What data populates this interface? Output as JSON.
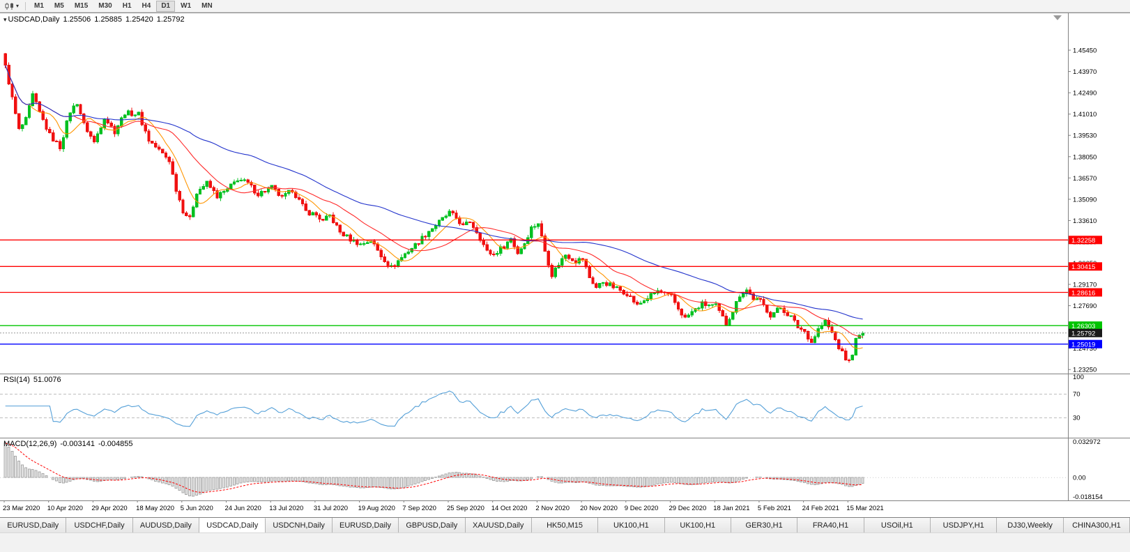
{
  "toolbar": {
    "timeframes": [
      "M1",
      "M5",
      "M15",
      "M30",
      "H1",
      "H4",
      "D1",
      "W1",
      "MN"
    ],
    "active_timeframe": "D1"
  },
  "chart": {
    "symbol_title": "USDCAD,Daily",
    "open": "1.25506",
    "high": "1.25885",
    "low": "1.25420",
    "close": "1.25792"
  },
  "rsi": {
    "label": "RSI(14)",
    "value": "51.0076",
    "axis": [
      "100",
      "70",
      "30"
    ]
  },
  "macd": {
    "label": "MACD(12,26,9)",
    "value_macd": "-0.003141",
    "value_signal": "-0.004855",
    "axis_top": "0.032972",
    "axis_zero": "0.00",
    "axis_bottom": "-0.018154"
  },
  "tabs": {
    "active_index": 3,
    "items": [
      "EURUSD,Daily",
      "USDCHF,Daily",
      "AUDUSD,Daily",
      "USDCAD,Daily",
      "USDCNH,Daily",
      "EURUSD,Daily",
      "GBPUSD,Daily",
      "XAUUSD,Daily",
      "HK50,M15",
      "UK100,H1",
      "UK100,H1",
      "GER30,H1",
      "FRA40,H1",
      "USOil,H1",
      "USDJPY,H1",
      "DJ30,Weekly",
      "CHINA300,H1"
    ],
    "active_label": "USDCAD,Daily"
  },
  "chart_data": {
    "type": "candlestick",
    "symbol": "USDCAD",
    "timeframe": "Daily",
    "ohlc_display": {
      "open": 1.25506,
      "high": 1.25885,
      "low": 1.2542,
      "close": 1.25792
    },
    "bars": 252,
    "first_open": 1.452,
    "price_range": {
      "top": 1.4802,
      "bottom": 1.2297
    },
    "y_ticks": [
      "1.45450",
      "1.43970",
      "1.42490",
      "1.41010",
      "1.39530",
      "1.38050",
      "1.36570",
      "1.35090",
      "1.33610",
      "1.32130",
      "1.30650",
      "1.29170",
      "1.27690",
      "1.26210",
      "1.24730",
      "1.23250"
    ],
    "x_labels": [
      "23 Mar 2020",
      "10 Apr 2020",
      "29 Apr 2020",
      "18 May 2020",
      "5 Jun 2020",
      "24 Jun 2020",
      "13 Jul 2020",
      "31 Jul 2020",
      "19 Aug 2020",
      "7 Sep 2020",
      "25 Sep 2020",
      "14 Oct 2020",
      "2 Nov 2020",
      "20 Nov 2020",
      "9 Dec 2020",
      "29 Dec 2020",
      "18 Jan 2021",
      "5 Feb 2021",
      "24 Feb 2021",
      "15 Mar 2021"
    ],
    "bars_per_label": 13,
    "close_anchors": [
      [
        0,
        1.444
      ],
      [
        2,
        1.421
      ],
      [
        4,
        1.399
      ],
      [
        6,
        1.406
      ],
      [
        8,
        1.423
      ],
      [
        10,
        1.411
      ],
      [
        13,
        1.3955
      ],
      [
        16,
        1.387
      ],
      [
        19,
        1.412
      ],
      [
        21,
        1.418
      ],
      [
        23,
        1.403
      ],
      [
        26,
        1.3905
      ],
      [
        29,
        1.408
      ],
      [
        32,
        1.398
      ],
      [
        35,
        1.411
      ],
      [
        39,
        1.41
      ],
      [
        42,
        1.392
      ],
      [
        45,
        1.385
      ],
      [
        48,
        1.378
      ],
      [
        50,
        1.358
      ],
      [
        52,
        1.343
      ],
      [
        54,
        1.337
      ],
      [
        56,
        1.356
      ],
      [
        59,
        1.362
      ],
      [
        62,
        1.353
      ],
      [
        65,
        1.3575
      ],
      [
        68,
        1.365
      ],
      [
        71,
        1.362
      ],
      [
        74,
        1.3545
      ],
      [
        78,
        1.359
      ],
      [
        81,
        1.3515
      ],
      [
        84,
        1.3575
      ],
      [
        88,
        1.3425
      ],
      [
        91,
        1.34
      ],
      [
        93,
        1.3355
      ],
      [
        95,
        1.3395
      ],
      [
        98,
        1.328
      ],
      [
        101,
        1.323
      ],
      [
        104,
        1.3195
      ],
      [
        107,
        1.3225
      ],
      [
        110,
        1.3115
      ],
      [
        113,
        1.3035
      ],
      [
        115,
        1.308
      ],
      [
        117,
        1.313
      ],
      [
        120,
        1.319
      ],
      [
        124,
        1.329
      ],
      [
        127,
        1.335
      ],
      [
        130,
        1.3415
      ],
      [
        132,
        1.338
      ],
      [
        134,
        1.332
      ],
      [
        136,
        1.3355
      ],
      [
        138,
        1.3285
      ],
      [
        141,
        1.3145
      ],
      [
        143,
        1.3125
      ],
      [
        146,
        1.3185
      ],
      [
        148,
        1.3235
      ],
      [
        150,
        1.3135
      ],
      [
        152,
        1.3205
      ],
      [
        154,
        1.331
      ],
      [
        156,
        1.3345
      ],
      [
        158,
        1.315
      ],
      [
        160,
        1.2985
      ],
      [
        162,
        1.306
      ],
      [
        164,
        1.3125
      ],
      [
        167,
        1.308
      ],
      [
        169,
        1.3095
      ],
      [
        171,
        1.2965
      ],
      [
        173,
        1.2895
      ],
      [
        175,
        1.2935
      ],
      [
        178,
        1.29
      ],
      [
        182,
        1.2855
      ],
      [
        185,
        1.277
      ],
      [
        188,
        1.2825
      ],
      [
        191,
        1.287
      ],
      [
        195,
        1.283
      ],
      [
        197,
        1.275
      ],
      [
        199,
        1.268
      ],
      [
        201,
        1.2725
      ],
      [
        204,
        1.278
      ],
      [
        208,
        1.2765
      ],
      [
        211,
        1.2645
      ],
      [
        213,
        1.2735
      ],
      [
        215,
        1.2845
      ],
      [
        217,
        1.288
      ],
      [
        219,
        1.282
      ],
      [
        221,
        1.28
      ],
      [
        224,
        1.2705
      ],
      [
        227,
        1.2755
      ],
      [
        230,
        1.269
      ],
      [
        232,
        1.262
      ],
      [
        234,
        1.259
      ],
      [
        236,
        1.2515
      ],
      [
        238,
        1.2605
      ],
      [
        240,
        1.266
      ],
      [
        242,
        1.258
      ],
      [
        244,
        1.248
      ],
      [
        246,
        1.24
      ],
      [
        247,
        1.238
      ],
      [
        248,
        1.244
      ],
      [
        249,
        1.253
      ],
      [
        250,
        1.2555
      ],
      [
        251,
        1.25792
      ]
    ],
    "candle_colors": {
      "up": "#00c020",
      "down": "#f01010"
    },
    "moving_averages": [
      {
        "period": 8,
        "color": "#ff9500",
        "name": "ma-fast-orange"
      },
      {
        "period": 21,
        "color": "#ff2a2a",
        "name": "ma-mid-red"
      },
      {
        "period": 55,
        "color": "#2233cc",
        "name": "ma-slow-blue"
      }
    ],
    "horizontal_lines": [
      {
        "value": 1.32258,
        "label": "1.32258",
        "color": "#ff0000",
        "name": "resistance-line-1"
      },
      {
        "value": 1.30415,
        "label": "1.30415",
        "color": "#ff0000",
        "name": "resistance-line-2"
      },
      {
        "value": 1.28616,
        "label": "1.28616",
        "color": "#ff0000",
        "name": "resistance-line-3"
      },
      {
        "value": 1.26303,
        "label": "1.26303",
        "color": "#00c400",
        "name": "support-line-green"
      },
      {
        "value": 1.25019,
        "label": "1.25019",
        "color": "#0000ff",
        "name": "support-line-blue"
      }
    ],
    "current_price": {
      "value": 1.25792,
      "label": "1.25792",
      "tag_color": "#1a1a1a"
    },
    "rsi": {
      "period": 14,
      "current": 51.0076,
      "levels": [
        70,
        30
      ],
      "range": [
        0,
        100
      ],
      "color": "#55a0d8"
    },
    "macd": {
      "fast": 12,
      "slow": 26,
      "signal": 9,
      "range": [
        -0.018154,
        0.032972
      ],
      "histogram_fill": "#e6e6e6",
      "histogram_stroke": "#a8a8a8",
      "signal_color": "#ff0000"
    }
  }
}
